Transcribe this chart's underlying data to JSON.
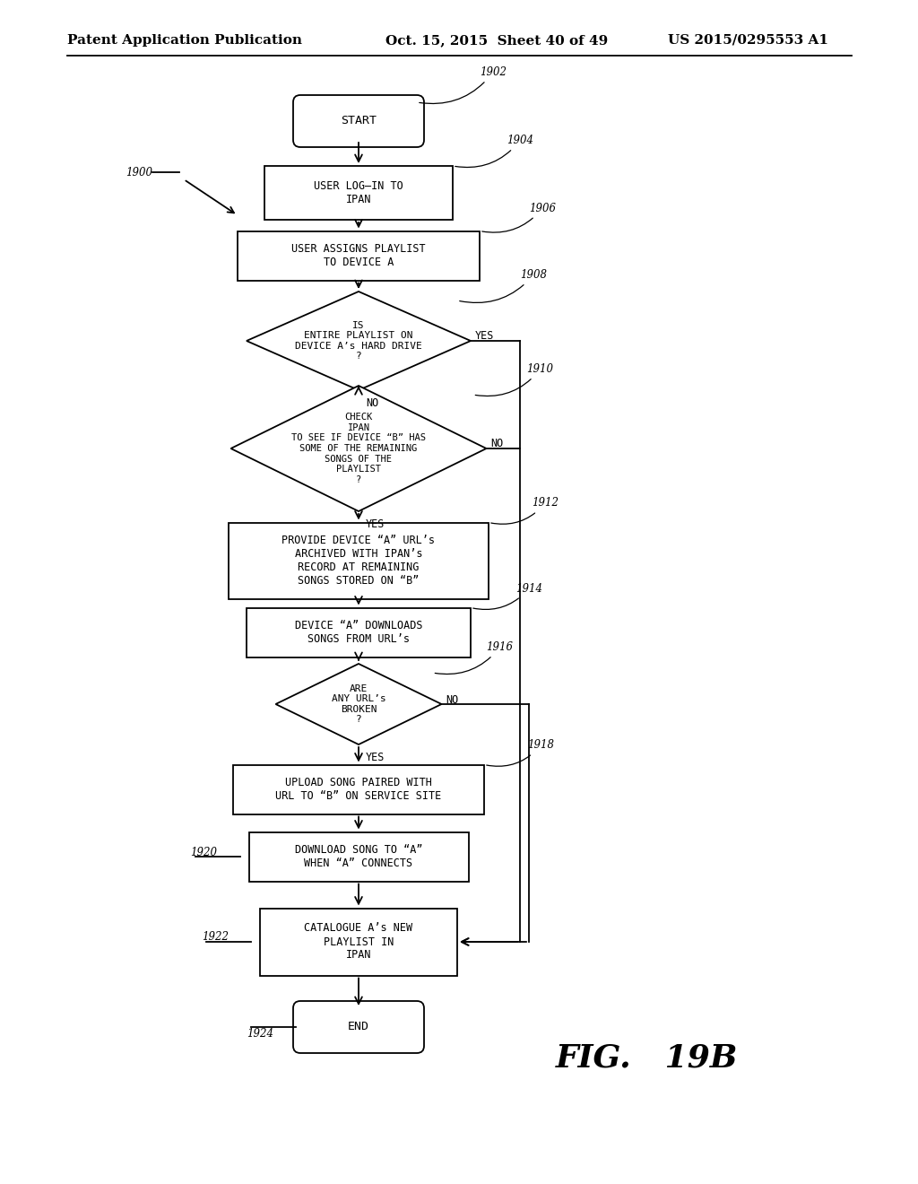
{
  "header_left": "Patent Application Publication",
  "header_center": "Oct. 15, 2015  Sheet 40 of 49",
  "header_right": "US 2015/0295553 A1",
  "figure_label": "FIG.   19B",
  "bg_color": "#ffffff"
}
